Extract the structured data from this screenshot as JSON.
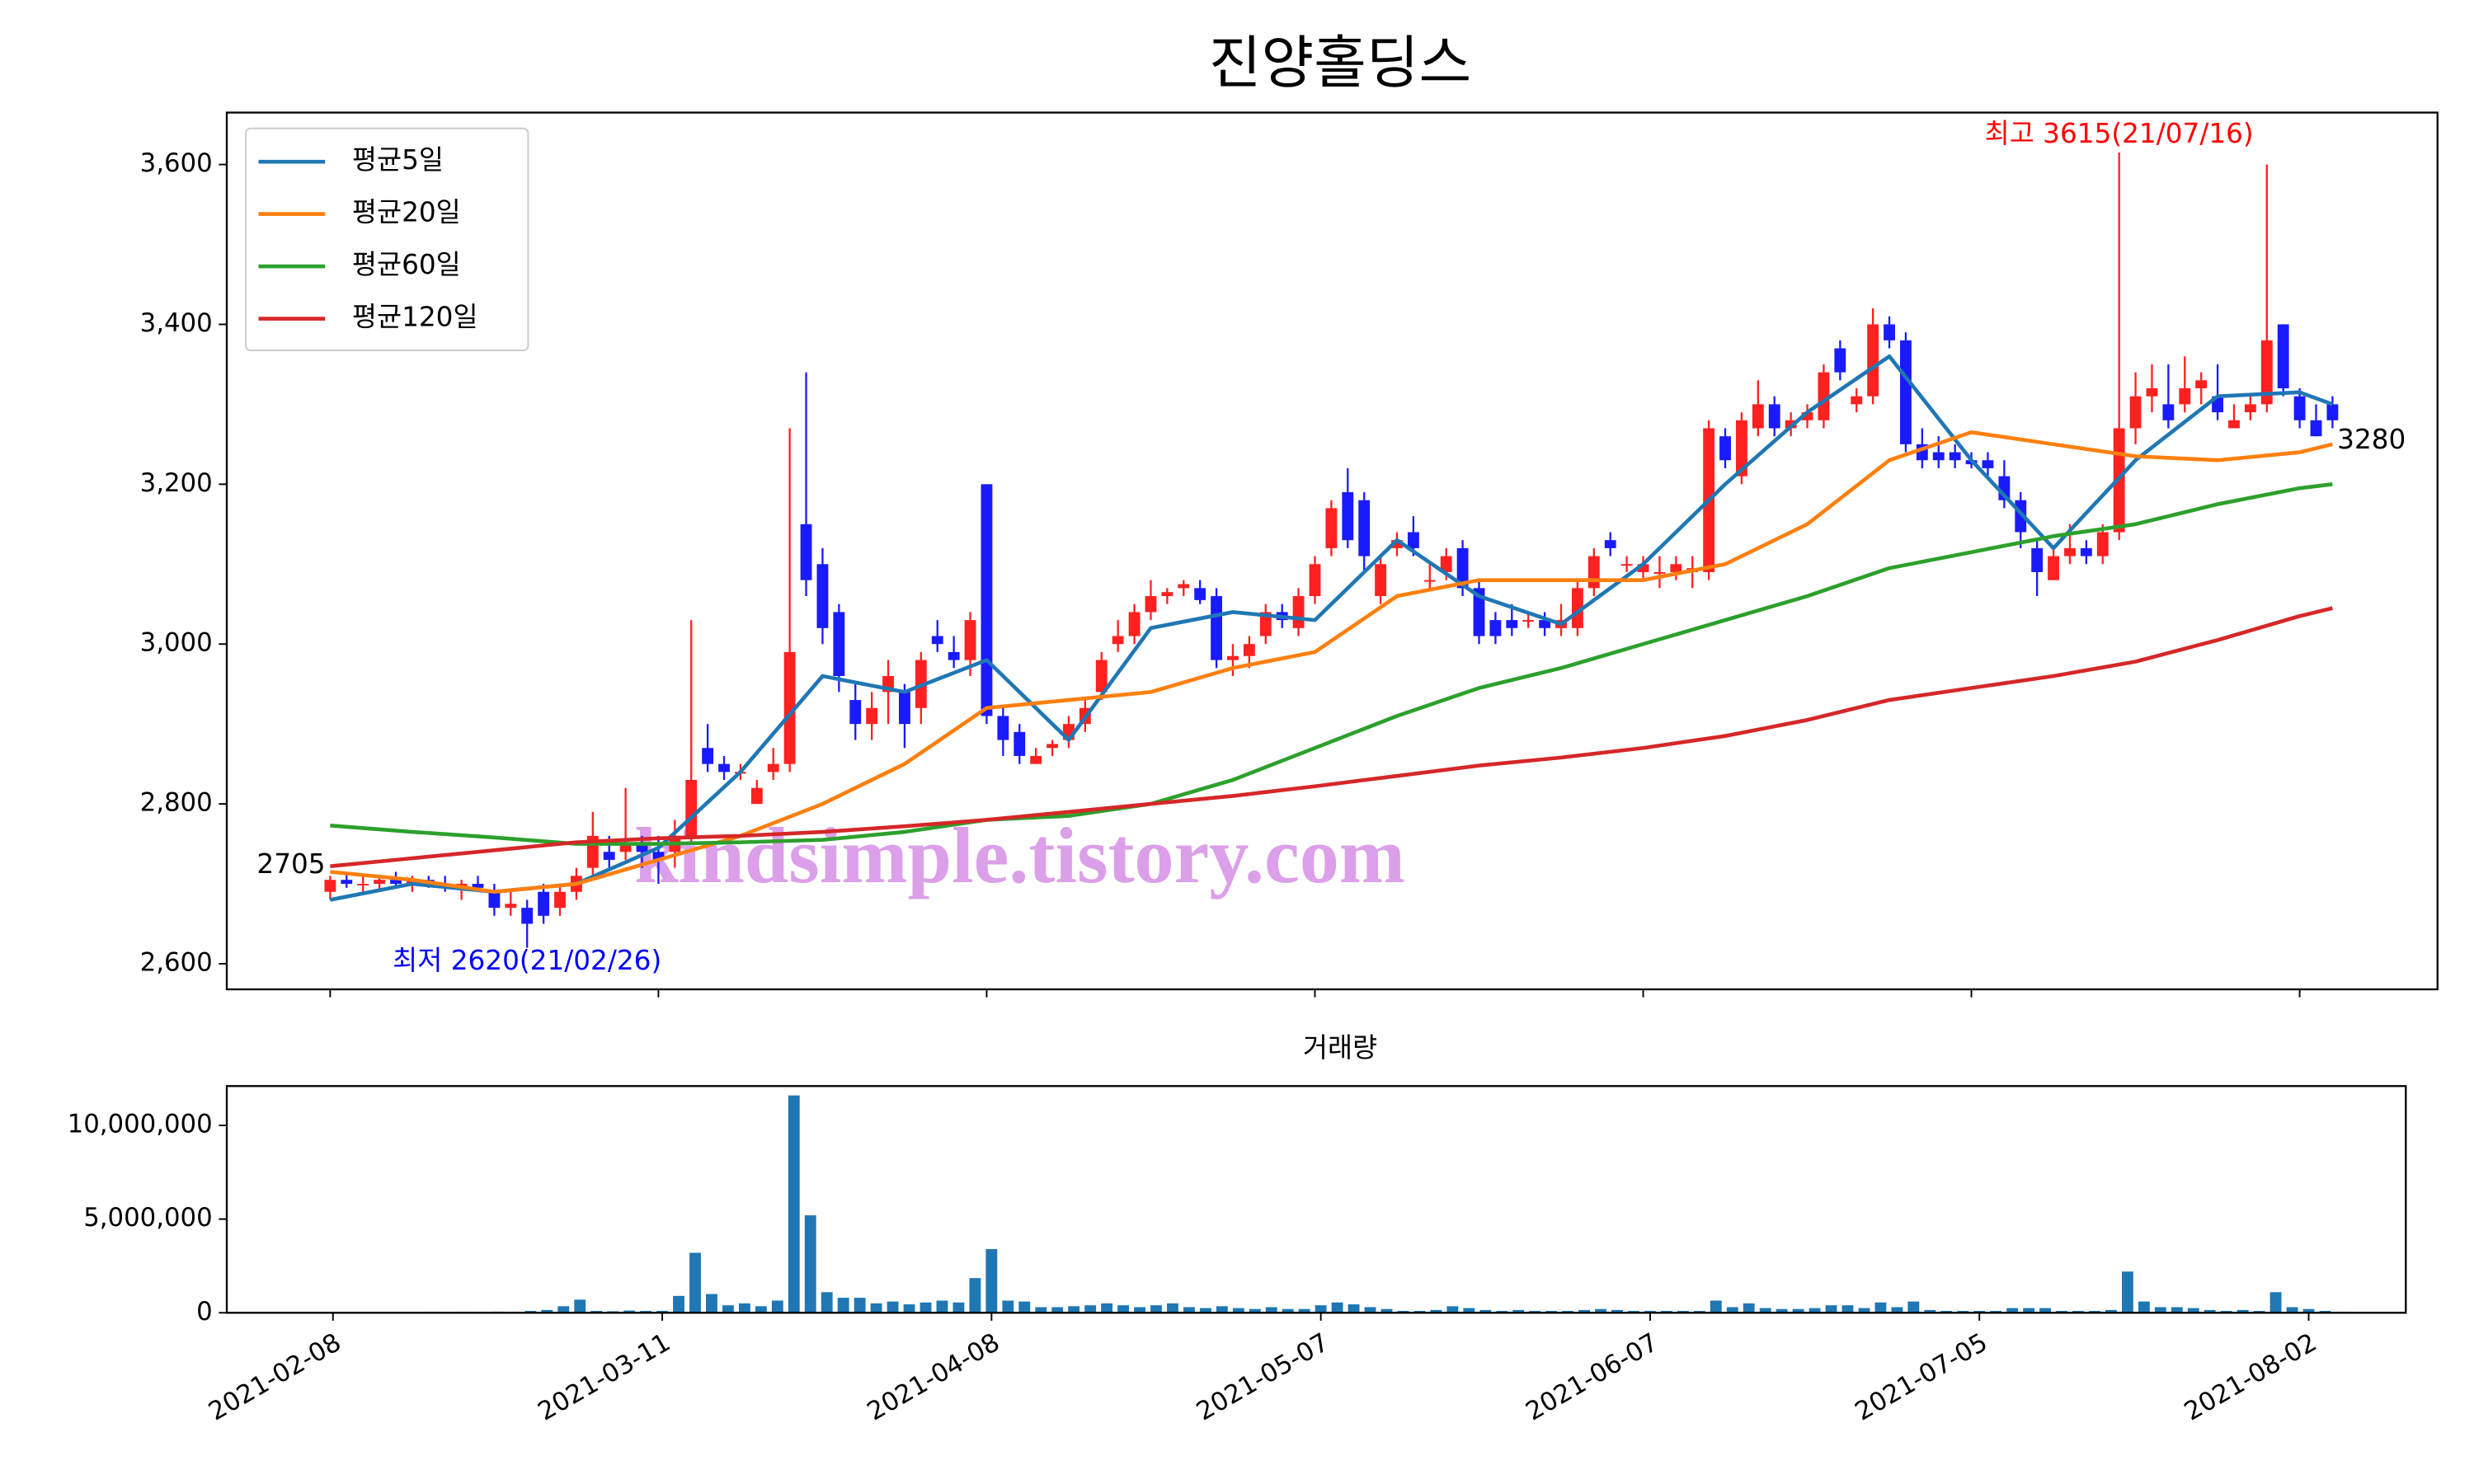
{
  "chart_data": {
    "type": "candlestick",
    "title": "진양홀딩스",
    "categories": [
      "2021-02-08",
      null,
      null,
      null,
      null,
      null,
      null,
      null,
      null,
      null,
      null,
      null,
      null,
      null,
      null,
      null,
      null,
      null,
      null,
      null,
      "2021-03-11",
      null,
      null,
      null,
      null,
      null,
      null,
      null,
      null,
      null,
      null,
      null,
      null,
      null,
      null,
      null,
      null,
      null,
      null,
      null,
      "2021-04-08",
      null,
      null,
      null,
      null,
      null,
      null,
      null,
      null,
      null,
      null,
      null,
      null,
      null,
      null,
      null,
      null,
      null,
      null,
      null,
      "2021-05-07",
      null,
      null,
      null,
      null,
      null,
      null,
      null,
      null,
      null,
      null,
      null,
      null,
      null,
      null,
      null,
      null,
      null,
      null,
      null,
      "2021-06-07",
      null,
      null,
      null,
      null,
      null,
      null,
      null,
      null,
      null,
      null,
      null,
      null,
      null,
      null,
      null,
      null,
      null,
      null,
      null,
      "2021-07-05",
      null,
      null,
      null,
      null,
      null,
      null,
      null,
      null,
      null,
      null,
      null,
      null,
      null,
      null,
      null,
      null,
      null,
      null,
      null,
      "2021-08-02",
      null,
      null
    ],
    "open": [
      2690,
      2705,
      2700,
      2700,
      2705,
      2700,
      2705,
      2700,
      2695,
      2700,
      2690,
      2670,
      2670,
      2690,
      2670,
      2690,
      2720,
      2740,
      2740,
      2750,
      2740,
      2740,
      2760,
      2870,
      2850,
      2840,
      2800,
      2840,
      2850,
      3150,
      3100,
      3040,
      2930,
      2900,
      2940,
      2940,
      2920,
      3010,
      2990,
      2980,
      3200,
      2910,
      2890,
      2850,
      2870,
      2880,
      2900,
      2940,
      3000,
      3010,
      3040,
      3060,
      3070,
      3070,
      3060,
      2980,
      2985,
      3010,
      3040,
      3020,
      3060,
      3120,
      3190,
      3180,
      3060,
      3120,
      3140,
      3080,
      3090,
      3120,
      3070,
      3030,
      3030,
      3030,
      3030,
      3020,
      3020,
      3070,
      3130,
      3100,
      3090,
      3090,
      3090,
      3090,
      3090,
      3260,
      3210,
      3270,
      3300,
      3270,
      3280,
      3280,
      3370,
      3300,
      3310,
      3400,
      3380,
      3250,
      3240,
      3240,
      3230,
      3230,
      3210,
      3180,
      3120,
      3080,
      3110,
      3120,
      3110,
      3140,
      3270,
      3310,
      3300,
      3300,
      3320,
      3310,
      3270,
      3290,
      3300,
      3400,
      3310,
      3280,
      3300
    ],
    "high": [
      2710,
      2715,
      2710,
      2710,
      2715,
      2710,
      2710,
      2710,
      2705,
      2710,
      2700,
      2690,
      2680,
      2700,
      2700,
      2720,
      2790,
      2760,
      2820,
      2760,
      2760,
      2780,
      3030,
      2900,
      2860,
      2850,
      2830,
      2870,
      3270,
      3340,
      3120,
      3050,
      2950,
      2940,
      2980,
      2950,
      2990,
      3030,
      3010,
      3040,
      3200,
      2920,
      2900,
      2870,
      2880,
      2910,
      2930,
      2990,
      3030,
      3050,
      3080,
      3070,
      3080,
      3080,
      3070,
      3000,
      3010,
      3050,
      3050,
      3070,
      3110,
      3180,
      3220,
      3190,
      3110,
      3140,
      3160,
      3100,
      3120,
      3130,
      3080,
      3040,
      3050,
      3040,
      3040,
      3050,
      3080,
      3120,
      3140,
      3110,
      3110,
      3110,
      3110,
      3110,
      3280,
      3270,
      3290,
      3330,
      3310,
      3290,
      3300,
      3350,
      3380,
      3320,
      3420,
      3410,
      3390,
      3270,
      3260,
      3250,
      3240,
      3240,
      3230,
      3190,
      3130,
      3120,
      3150,
      3130,
      3150,
      3615,
      3340,
      3350,
      3350,
      3360,
      3340,
      3350,
      3300,
      3310,
      3600,
      3400,
      3320,
      3300,
      3310
    ],
    "low": [
      2680,
      2695,
      2690,
      2690,
      2695,
      2690,
      2695,
      2690,
      2680,
      2690,
      2660,
      2660,
      2620,
      2650,
      2660,
      2680,
      2710,
      2720,
      2730,
      2720,
      2700,
      2720,
      2750,
      2840,
      2830,
      2830,
      2800,
      2830,
      2840,
      3060,
      3000,
      2940,
      2880,
      2880,
      2900,
      2870,
      2900,
      2990,
      2970,
      2960,
      2900,
      2860,
      2850,
      2850,
      2860,
      2870,
      2890,
      2930,
      2990,
      3000,
      3030,
      3050,
      3060,
      3050,
      2970,
      2960,
      2970,
      3000,
      3020,
      3010,
      3050,
      3110,
      3120,
      3090,
      3050,
      3110,
      3110,
      3070,
      3080,
      3060,
      3000,
      3000,
      3010,
      3020,
      3010,
      3010,
      3010,
      3060,
      3110,
      3090,
      3080,
      3070,
      3080,
      3070,
      3080,
      3220,
      3200,
      3260,
      3260,
      3260,
      3270,
      3270,
      3330,
      3290,
      3300,
      3370,
      3240,
      3220,
      3220,
      3220,
      3220,
      3210,
      3170,
      3120,
      3060,
      3080,
      3100,
      3100,
      3100,
      3130,
      3250,
      3290,
      3270,
      3290,
      3300,
      3280,
      3270,
      3280,
      3290,
      3310,
      3270,
      3260,
      3270
    ],
    "close": [
      2705,
      2700,
      2700,
      2705,
      2700,
      2705,
      2700,
      2695,
      2700,
      2695,
      2670,
      2675,
      2650,
      2660,
      2690,
      2710,
      2760,
      2730,
      2750,
      2740,
      2730,
      2760,
      2830,
      2850,
      2840,
      2840,
      2820,
      2850,
      2990,
      3080,
      3020,
      2960,
      2900,
      2920,
      2960,
      2900,
      2980,
      3000,
      2980,
      3030,
      2910,
      2880,
      2860,
      2860,
      2875,
      2900,
      2920,
      2980,
      3010,
      3040,
      3060,
      3065,
      3075,
      3055,
      2980,
      2985,
      3000,
      3040,
      3030,
      3060,
      3100,
      3170,
      3130,
      3110,
      3100,
      3130,
      3120,
      3080,
      3110,
      3070,
      3010,
      3010,
      3020,
      3030,
      3020,
      3030,
      3070,
      3110,
      3120,
      3100,
      3100,
      3090,
      3100,
      3095,
      3270,
      3230,
      3280,
      3300,
      3270,
      3280,
      3290,
      3340,
      3340,
      3310,
      3400,
      3380,
      3250,
      3230,
      3230,
      3230,
      3225,
      3220,
      3180,
      3140,
      3090,
      3110,
      3120,
      3110,
      3140,
      3270,
      3310,
      3320,
      3280,
      3320,
      3330,
      3290,
      3280,
      3300,
      3380,
      3320,
      3280,
      3260,
      3280
    ],
    "up_color": "#ff2020",
    "down_color": "#1a1aff",
    "xlim": [
      -6.3,
      128.4
    ],
    "ylim": [
      2568,
      3665
    ],
    "yticks": [
      {
        "value": 2600,
        "label": "2,600"
      },
      {
        "value": 2800,
        "label": "2,800"
      },
      {
        "value": 3000,
        "label": "3,000"
      },
      {
        "value": 3200,
        "label": "3,200"
      },
      {
        "value": 3400,
        "label": "3,400"
      },
      {
        "value": 3600,
        "label": "3,600"
      }
    ],
    "legend": "upper left",
    "series": [
      {
        "name": "평균5일",
        "color": "#1f77b4",
        "x": [
          0,
          5,
          10,
          15,
          20,
          25,
          30,
          35,
          40,
          45,
          50,
          55,
          60,
          65,
          70,
          75,
          80,
          85,
          90,
          95,
          100,
          105,
          110,
          115,
          120,
          122
        ],
        "values": [
          2680,
          2700,
          2690,
          2700,
          2745,
          2840,
          2960,
          2940,
          2980,
          2880,
          3020,
          3040,
          3030,
          3130,
          3060,
          3025,
          3100,
          3200,
          3290,
          3360,
          3230,
          3120,
          3230,
          3310,
          3315,
          3300
        ]
      },
      {
        "name": "평균20일",
        "color": "#ff7f0e",
        "x": [
          0,
          5,
          10,
          15,
          20,
          25,
          30,
          35,
          40,
          45,
          50,
          55,
          60,
          65,
          70,
          75,
          80,
          85,
          90,
          95,
          100,
          105,
          110,
          115,
          120,
          122
        ],
        "values": [
          2715,
          2705,
          2690,
          2700,
          2730,
          2760,
          2800,
          2850,
          2920,
          2930,
          2940,
          2970,
          2990,
          3060,
          3080,
          3080,
          3080,
          3100,
          3150,
          3230,
          3265,
          3250,
          3235,
          3230,
          3240,
          3250
        ]
      },
      {
        "name": "평균60일",
        "color": "#2ca02c",
        "x": [
          0,
          5,
          10,
          15,
          20,
          25,
          30,
          35,
          40,
          45,
          50,
          55,
          60,
          65,
          70,
          75,
          80,
          85,
          90,
          95,
          100,
          105,
          110,
          115,
          120,
          122
        ],
        "values": [
          2773,
          2765,
          2758,
          2750,
          2750,
          2752,
          2755,
          2765,
          2780,
          2785,
          2800,
          2830,
          2870,
          2910,
          2945,
          2970,
          3000,
          3030,
          3060,
          3095,
          3115,
          3135,
          3150,
          3175,
          3195,
          3200
        ]
      },
      {
        "name": "평균120일",
        "color": "#d62728",
        "x": [
          0,
          5,
          10,
          15,
          20,
          25,
          30,
          35,
          40,
          45,
          50,
          55,
          60,
          65,
          70,
          75,
          80,
          85,
          90,
          95,
          100,
          105,
          110,
          115,
          120,
          122
        ],
        "values": [
          2722,
          2732,
          2742,
          2752,
          2757,
          2760,
          2765,
          2772,
          2780,
          2790,
          2800,
          2810,
          2822,
          2835,
          2848,
          2858,
          2870,
          2885,
          2905,
          2930,
          2945,
          2960,
          2978,
          3005,
          3035,
          3045
        ]
      }
    ],
    "annotations": [
      {
        "text": "2705",
        "x": 0,
        "y": 2705,
        "position": "left",
        "color": "#000000"
      },
      {
        "text": "3280",
        "x": 122,
        "y": 3280,
        "position": "right",
        "color": "#000000"
      },
      {
        "text": "최저 2620(21/02/26)",
        "x": 12,
        "y": 2620,
        "position": "below",
        "color": "#0000ff"
      },
      {
        "text": "최고 3615(21/07/16)",
        "x": 109,
        "y": 3615,
        "position": "above",
        "color": "#ff0000"
      }
    ],
    "watermark": "kindsimple.tistory.com",
    "volume": {
      "type": "bar",
      "title": "거래량",
      "color": "#1f77b4",
      "values": [
        30000,
        20000,
        20000,
        30000,
        20000,
        20000,
        40000,
        30000,
        50000,
        40000,
        60000,
        50000,
        100000,
        150000,
        350000,
        700000,
        100000,
        80000,
        120000,
        100000,
        100000,
        900000,
        3200000,
        1000000,
        400000,
        500000,
        350000,
        650000,
        11600000,
        5200000,
        1100000,
        800000,
        800000,
        500000,
        600000,
        450000,
        550000,
        650000,
        550000,
        1850000,
        3400000,
        650000,
        600000,
        300000,
        300000,
        350000,
        400000,
        500000,
        400000,
        300000,
        400000,
        500000,
        300000,
        250000,
        350000,
        250000,
        200000,
        300000,
        200000,
        200000,
        400000,
        550000,
        450000,
        300000,
        200000,
        100000,
        100000,
        150000,
        350000,
        250000,
        150000,
        100000,
        150000,
        100000,
        100000,
        100000,
        150000,
        200000,
        150000,
        100000,
        100000,
        100000,
        100000,
        100000,
        650000,
        300000,
        500000,
        250000,
        200000,
        200000,
        250000,
        400000,
        400000,
        250000,
        550000,
        300000,
        600000,
        150000,
        100000,
        100000,
        100000,
        100000,
        250000,
        250000,
        250000,
        100000,
        100000,
        100000,
        150000,
        2200000,
        600000,
        300000,
        300000,
        250000,
        150000,
        100000,
        150000,
        100000,
        1100000,
        300000,
        200000,
        100000,
        50000
      ],
      "xlim": [
        -6.45,
        125.9
      ],
      "ylim": [
        0,
        12100000
      ],
      "yticks": [
        0,
        {
          "value": 5000000,
          "label": "5,000,000"
        },
        {
          "value": 10000000,
          "label": "10,000,000"
        }
      ]
    }
  }
}
